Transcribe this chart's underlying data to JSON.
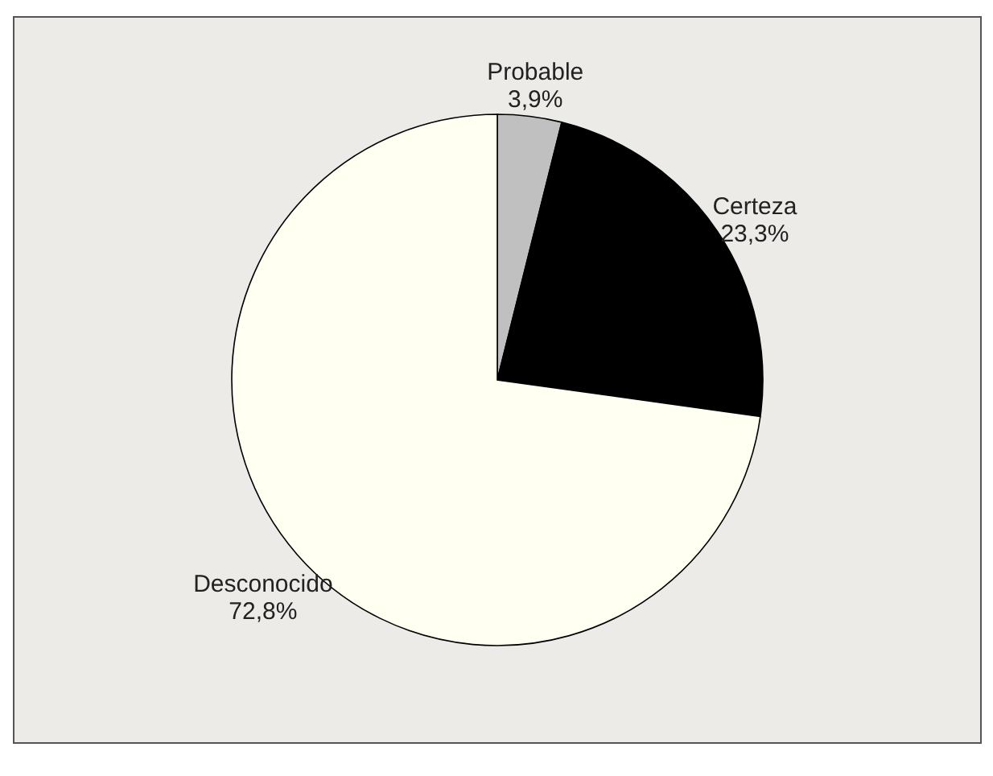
{
  "chart_data": {
    "type": "pie",
    "categories": [
      "Probable",
      "Certeza",
      "Desconocido"
    ],
    "values": [
      3.9,
      23.3,
      72.8
    ],
    "colors": [
      "#c0c0c0",
      "#000000",
      "#fffff2"
    ],
    "value_labels": [
      "3,9%",
      "23,3%",
      "72,8%"
    ],
    "legend": false
  }
}
